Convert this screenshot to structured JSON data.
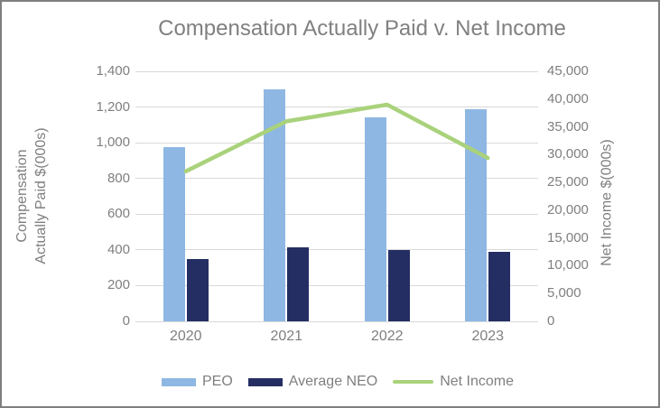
{
  "frame": {
    "border_color": "#7f7f7f",
    "background": "#ffffff"
  },
  "chart_data": {
    "type": "bar",
    "subtype": "combo-bar-line-dual-axis",
    "title": "Compensation Actually Paid v. Net Income",
    "categories": [
      "2020",
      "2021",
      "2022",
      "2023"
    ],
    "series": [
      {
        "name": "PEO",
        "type": "bar",
        "axis": "left",
        "color": "#8eb7e3",
        "values": [
          975,
          1300,
          1140,
          1190
        ]
      },
      {
        "name": "Average NEO",
        "type": "bar",
        "axis": "left",
        "color": "#252e63",
        "values": [
          350,
          415,
          400,
          390
        ]
      },
      {
        "name": "Net Income",
        "type": "line",
        "axis": "right",
        "color": "#a9d27b",
        "values": [
          27000,
          36000,
          39000,
          29400
        ]
      }
    ],
    "left_axis": {
      "title_lines": [
        "Compensation",
        "Actually Paid $(000s)"
      ],
      "min": 0,
      "max": 1400,
      "step": 200,
      "tick_labels": [
        "0",
        "200",
        "400",
        "600",
        "800",
        "1,000",
        "1,200",
        "1,400"
      ]
    },
    "right_axis": {
      "title": "Net Income $(000s)",
      "min": 0,
      "max": 45000,
      "step": 5000,
      "tick_labels": [
        "0",
        "5,000",
        "10,000",
        "15,000",
        "20,000",
        "25,000",
        "30,000",
        "35,000",
        "40,000",
        "45,000"
      ]
    },
    "legend": {
      "position": "bottom",
      "entries": [
        "PEO",
        "Average NEO",
        "Net Income"
      ]
    },
    "grid": {
      "horizontal": true,
      "color": "#d9d9d9"
    },
    "text_color": "#7f7f7f"
  }
}
